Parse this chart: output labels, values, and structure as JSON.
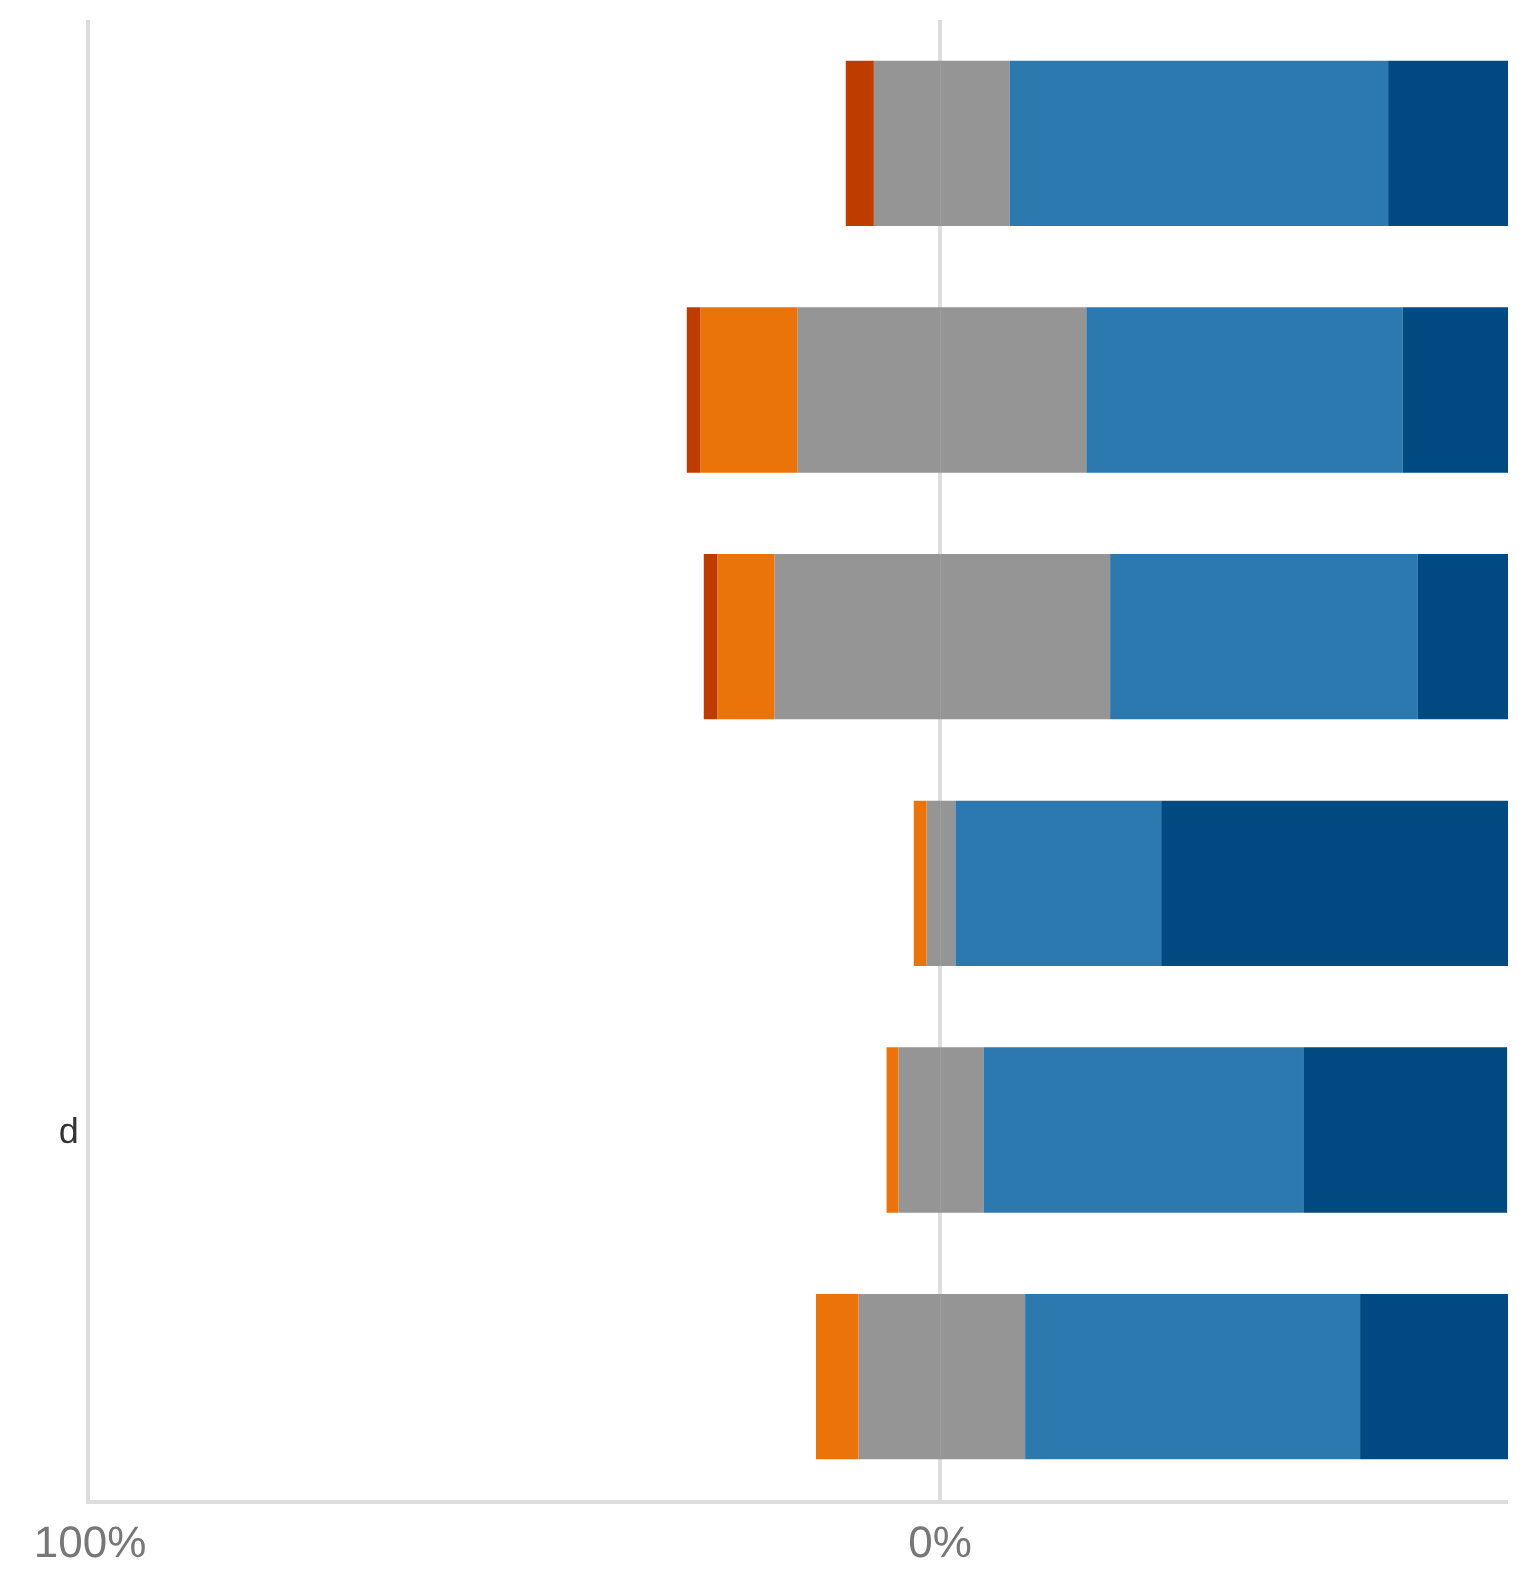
{
  "chart_data": {
    "type": "bar",
    "orientation": "horizontal",
    "stacked": true,
    "categories": [
      null,
      null,
      null,
      null,
      "d",
      null
    ],
    "series": [
      {
        "color": "#959595",
        "values": [
          -7.8,
          -16.8,
          -19.5,
          -1.6,
          -4.9,
          -9.6
        ]
      },
      {
        "color": "#ea730a",
        "values": [
          0,
          -11.4,
          -6.7,
          -1.5,
          -1.4,
          -5.0
        ]
      },
      {
        "color": "#bf3c00",
        "values": [
          -3.3,
          -1.6,
          -1.6,
          0,
          0,
          0
        ]
      },
      {
        "color": "#959595",
        "values": [
          8.2,
          17.2,
          20.0,
          1.8,
          5.1,
          10.0
        ]
      },
      {
        "color": "#2c79b0",
        "values": [
          44.5,
          37.2,
          36.2,
          24.2,
          37.7,
          39.4
        ]
      },
      {
        "color": "#004a82",
        "values": [
          14.1,
          12.4,
          10.6,
          40.8,
          23.9,
          17.4
        ]
      }
    ],
    "xlim": [
      -100,
      66.8
    ],
    "xticks": [
      {
        "value": -100,
        "label": "100%"
      },
      {
        "value": 0,
        "label": "0%"
      }
    ],
    "grid": "x"
  }
}
